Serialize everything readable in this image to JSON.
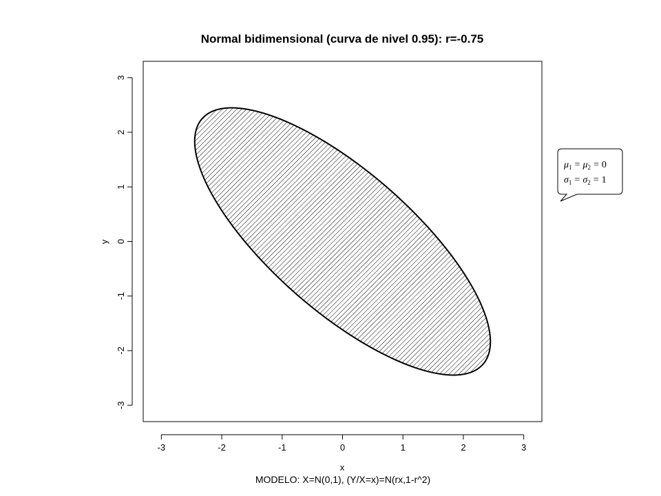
{
  "chart_data": {
    "type": "contour",
    "title": "Normal bidimensional (curva de nivel 0.95): r=-0.75",
    "xlabel": "x",
    "ylabel": "y",
    "subtitle": "MODELO: X=N(0,1), (Y/X=x)=N(rx,1-r^2)",
    "xlim": [
      -3.3,
      3.3
    ],
    "ylim": [
      -3.3,
      3.3
    ],
    "x_ticks": [
      -3,
      -2,
      -1,
      0,
      1,
      2,
      3
    ],
    "y_ticks": [
      -3,
      -2,
      -1,
      0,
      1,
      2,
      3
    ],
    "x_tick_labels": [
      "-3",
      "-2",
      "-1",
      "0",
      "1",
      "2",
      "3"
    ],
    "y_tick_labels": [
      "-3",
      "-2",
      "-1",
      "0",
      "1",
      "2",
      "3"
    ],
    "r": -0.75,
    "level": 0.95,
    "mu": [
      0,
      0
    ],
    "sigma": [
      1,
      1
    ],
    "fill": "hatched",
    "grid": false,
    "annotation": {
      "line1": {
        "sym": "μ",
        "sub1": "1",
        "eq": "=",
        "sub2": "2",
        "eq2": "=",
        "val": "0"
      },
      "line2": {
        "sym": "σ",
        "sub1": "1",
        "eq": "=",
        "sub2": "2",
        "eq2": "=",
        "val": "1"
      }
    }
  }
}
